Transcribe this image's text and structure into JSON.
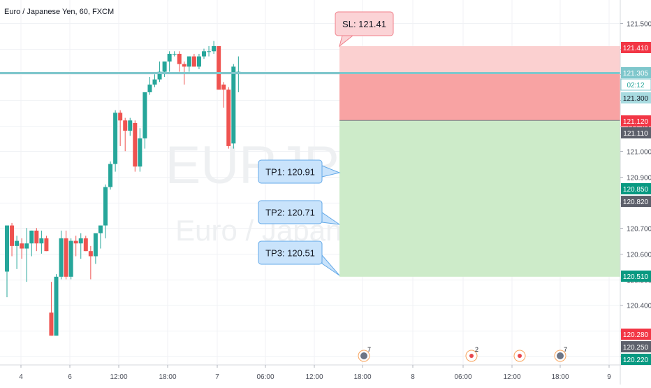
{
  "header": {
    "title": "Euro / Japanese Yen, 60, FXCM"
  },
  "watermark": {
    "line1": "EURJPY, 60",
    "line2": "Euro / Japanese Yen"
  },
  "chart_data": {
    "type": "candlestick",
    "price_axis_ticks": [
      121.5,
      121.4,
      121.3,
      121.2,
      121.1,
      121.0,
      120.9,
      120.8,
      120.7,
      120.6,
      120.5,
      120.4,
      120.3,
      120.2
    ],
    "time_axis_ticks": [
      "4",
      "6",
      "12:00",
      "18:00",
      "7",
      "06:00",
      "12:00",
      "18:00",
      "8",
      "06:00",
      "12:00",
      "18:00",
      "9"
    ],
    "candles": [
      {
        "o": 120.53,
        "h": 120.71,
        "l": 120.43,
        "c": 120.71
      },
      {
        "o": 120.71,
        "h": 120.72,
        "l": 120.59,
        "c": 120.63
      },
      {
        "o": 120.63,
        "h": 120.67,
        "l": 120.54,
        "c": 120.65
      },
      {
        "o": 120.64,
        "h": 120.66,
        "l": 120.58,
        "c": 120.62
      },
      {
        "o": 120.62,
        "h": 120.7,
        "l": 120.49,
        "c": 120.64
      },
      {
        "o": 120.64,
        "h": 120.69,
        "l": 120.59,
        "c": 120.69
      },
      {
        "o": 120.69,
        "h": 120.7,
        "l": 120.61,
        "c": 120.64
      },
      {
        "o": 120.64,
        "h": 120.69,
        "l": 120.6,
        "c": 120.66
      },
      {
        "o": 120.66,
        "h": 120.67,
        "l": 120.61,
        "c": 120.61
      },
      {
        "o": 120.37,
        "h": 120.49,
        "l": 120.28,
        "c": 120.28
      },
      {
        "o": 120.28,
        "h": 120.52,
        "l": 120.28,
        "c": 120.51
      },
      {
        "o": 120.51,
        "h": 120.69,
        "l": 120.5,
        "c": 120.66
      },
      {
        "o": 120.66,
        "h": 120.69,
        "l": 120.5,
        "c": 120.51
      },
      {
        "o": 120.51,
        "h": 120.66,
        "l": 120.5,
        "c": 120.65
      },
      {
        "o": 120.65,
        "h": 120.67,
        "l": 120.59,
        "c": 120.64
      },
      {
        "o": 120.64,
        "h": 120.68,
        "l": 120.58,
        "c": 120.66
      },
      {
        "o": 120.66,
        "h": 120.67,
        "l": 120.61,
        "c": 120.61
      },
      {
        "o": 120.61,
        "h": 120.63,
        "l": 120.5,
        "c": 120.59
      },
      {
        "o": 120.59,
        "h": 120.68,
        "l": 120.56,
        "c": 120.68
      },
      {
        "o": 120.68,
        "h": 120.71,
        "l": 120.62,
        "c": 120.71
      },
      {
        "o": 120.71,
        "h": 120.87,
        "l": 120.66,
        "c": 120.86
      },
      {
        "o": 120.86,
        "h": 120.96,
        "l": 120.85,
        "c": 120.95
      },
      {
        "o": 120.95,
        "h": 121.16,
        "l": 120.92,
        "c": 121.15
      },
      {
        "o": 121.15,
        "h": 121.16,
        "l": 121.02,
        "c": 121.12
      },
      {
        "o": 121.12,
        "h": 121.13,
        "l": 121.0,
        "c": 121.08
      },
      {
        "o": 121.08,
        "h": 121.13,
        "l": 121.06,
        "c": 121.12
      },
      {
        "o": 121.11,
        "h": 121.12,
        "l": 120.92,
        "c": 120.94
      },
      {
        "o": 120.94,
        "h": 121.09,
        "l": 120.92,
        "c": 121.05
      },
      {
        "o": 121.05,
        "h": 121.23,
        "l": 121.01,
        "c": 121.23
      },
      {
        "o": 121.23,
        "h": 121.29,
        "l": 121.22,
        "c": 121.26
      },
      {
        "o": 121.26,
        "h": 121.3,
        "l": 121.25,
        "c": 121.28
      },
      {
        "o": 121.28,
        "h": 121.35,
        "l": 121.27,
        "c": 121.31
      },
      {
        "o": 121.31,
        "h": 121.35,
        "l": 121.29,
        "c": 121.35
      },
      {
        "o": 121.35,
        "h": 121.39,
        "l": 121.31,
        "c": 121.38
      },
      {
        "o": 121.38,
        "h": 121.39,
        "l": 121.37,
        "c": 121.38
      },
      {
        "o": 121.38,
        "h": 121.39,
        "l": 121.31,
        "c": 121.34
      },
      {
        "o": 121.34,
        "h": 121.35,
        "l": 121.26,
        "c": 121.33
      },
      {
        "o": 121.33,
        "h": 121.37,
        "l": 121.31,
        "c": 121.37
      },
      {
        "o": 121.37,
        "h": 121.38,
        "l": 121.33,
        "c": 121.33
      },
      {
        "o": 121.33,
        "h": 121.38,
        "l": 121.32,
        "c": 121.37
      },
      {
        "o": 121.37,
        "h": 121.4,
        "l": 121.36,
        "c": 121.39
      },
      {
        "o": 121.39,
        "h": 121.41,
        "l": 121.37,
        "c": 121.39
      },
      {
        "o": 121.39,
        "h": 121.43,
        "l": 121.38,
        "c": 121.41
      },
      {
        "o": 121.41,
        "h": 121.41,
        "l": 121.24,
        "c": 121.24
      },
      {
        "o": 121.26,
        "h": 121.27,
        "l": 121.17,
        "c": 121.24
      },
      {
        "o": 121.24,
        "h": 121.25,
        "l": 121.01,
        "c": 121.02
      },
      {
        "o": 121.03,
        "h": 121.34,
        "l": 121.01,
        "c": 121.33
      },
      {
        "o": 121.31,
        "h": 121.37,
        "l": 121.23,
        "c": 121.31
      }
    ],
    "horizontal_line": {
      "price": 121.305
    },
    "risk_zone": {
      "top": 121.41,
      "entry": 121.12,
      "bottom": 120.51
    },
    "price_labels": [
      {
        "text": "121.410",
        "kind": "red"
      },
      {
        "text": "121.305",
        "kind": "teal"
      },
      {
        "text": "02:12",
        "kind": "outline"
      },
      {
        "text": "121.300",
        "kind": "lightteal"
      },
      {
        "text": "121.120",
        "kind": "red"
      },
      {
        "text": "121.110",
        "kind": "gray"
      },
      {
        "text": "120.850",
        "kind": "green"
      },
      {
        "text": "120.820",
        "kind": "gray"
      },
      {
        "text": "120.510",
        "kind": "green"
      },
      {
        "text": "120.280",
        "kind": "red"
      },
      {
        "text": "120.250",
        "kind": "gray"
      },
      {
        "text": "120.220",
        "kind": "green"
      }
    ],
    "callouts": [
      {
        "text": "SL: 121.41",
        "kind": "sl"
      },
      {
        "text": "TP1: 120.91",
        "kind": "tp"
      },
      {
        "text": "TP2: 120.71",
        "kind": "tp"
      },
      {
        "text": "TP3: 120.51",
        "kind": "tp"
      }
    ],
    "events": [
      {
        "count": "7",
        "kind": "news"
      },
      {
        "count": "2",
        "kind": "econ"
      },
      {
        "count": "",
        "kind": "econ"
      },
      {
        "count": "7",
        "kind": "news"
      }
    ],
    "colors": {
      "up": "#26a69a",
      "down": "#ef5350",
      "stop_zone": "#f8a3a3",
      "stop_zone_light": "#fbd0d0",
      "target_zone": "#cdebc9",
      "hline": "#7fc7cc",
      "sl_box": "#fbd3d6",
      "tp_box": "#c9e3fb"
    }
  }
}
